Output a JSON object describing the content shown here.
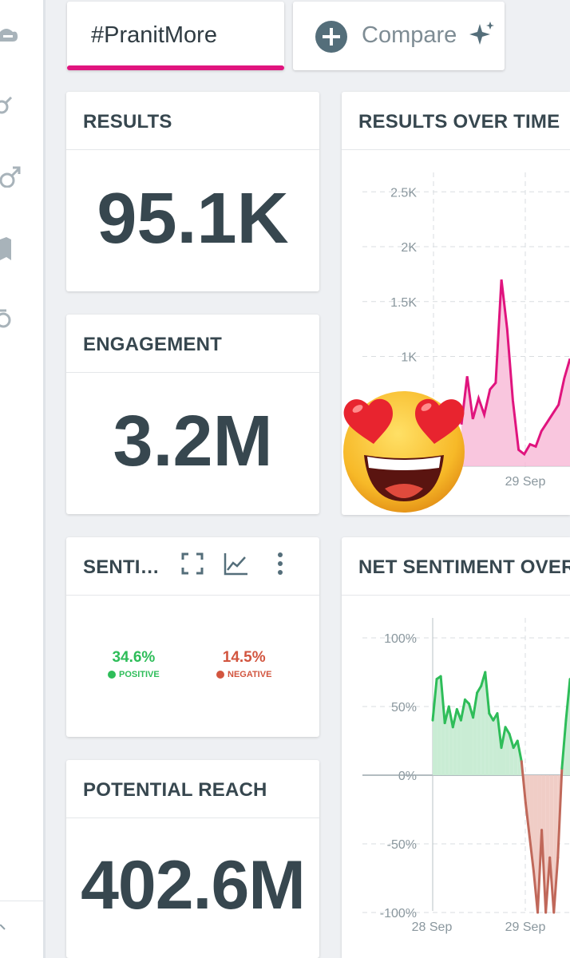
{
  "tabs": {
    "active_label": "#PranitMore",
    "compare_label": "Compare"
  },
  "accent_color": "#e0147e",
  "results": {
    "title": "RESULTS",
    "value": "95.1K"
  },
  "engagement": {
    "title": "ENGAGEMENT",
    "value": "3.2M"
  },
  "sentiment": {
    "title": "SENTI…",
    "positive": {
      "pct": "34.6%",
      "label": "POSITIVE",
      "color": "#2ebd59"
    },
    "negative": {
      "pct": "14.5%",
      "label": "NEGATIVE",
      "color": "#d2553f"
    }
  },
  "potential_reach": {
    "title": "POTENTIAL REACH",
    "value": "402.6M"
  },
  "results_over_time": {
    "title": "RESULTS OVER TIME",
    "chart_data": {
      "type": "area",
      "y_ticks": [
        "2.5K",
        "2K",
        "1.5K",
        "1K"
      ],
      "x_ticks": [
        "29 Sep"
      ],
      "ylim": [
        0,
        2800
      ],
      "grid": true,
      "color": "#e0147e",
      "series": [
        {
          "values": [
            380,
            820,
            430,
            620,
            470,
            700,
            760,
            1700,
            1250,
            600,
            150,
            110,
            200,
            180,
            320,
            400,
            480,
            560,
            800,
            980
          ]
        }
      ]
    }
  },
  "net_sentiment_over_time": {
    "title": "NET SENTIMENT OVER",
    "chart_data": {
      "type": "area",
      "y_ticks": [
        "100%",
        "50%",
        "0%",
        "-50%",
        "-100%"
      ],
      "x_ticks": [
        "28 Sep",
        "29 Sep"
      ],
      "ylim": [
        -100,
        100
      ],
      "grid": true,
      "positive_color": "#2ebd59",
      "negative_color": "#c0685a",
      "series": [
        {
          "values": [
            40,
            70,
            72,
            38,
            50,
            35,
            48,
            40,
            55,
            52,
            42,
            60,
            65,
            75,
            45,
            40,
            45,
            20,
            35,
            30,
            20,
            25,
            10,
            -20,
            -45,
            -70,
            -100,
            -40,
            -100,
            -60,
            -100,
            -60,
            5,
            40,
            70
          ]
        }
      ]
    }
  },
  "icons": [
    "cloud-icon",
    "gender-icon",
    "male-icon",
    "map-icon",
    "age-icon",
    "fullscreen-icon",
    "line-chart-icon",
    "more-vertical-icon",
    "plus-circle-icon",
    "sparkle-icon",
    "heart-eyes-emoji"
  ]
}
